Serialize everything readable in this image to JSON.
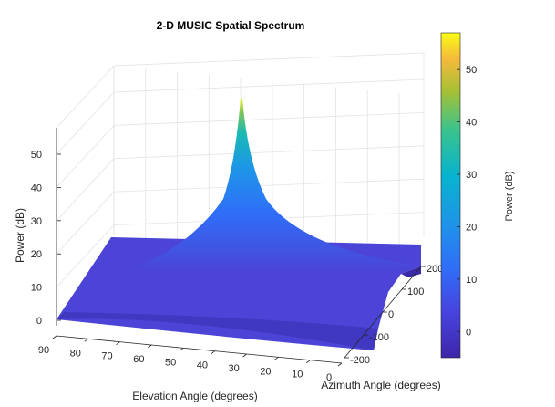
{
  "chart_data": {
    "type": "surface",
    "title": "2-D MUSIC Spatial Spectrum",
    "xlabel": "Elevation Angle (degrees)",
    "ylabel": "Azimuth Angle (degrees)",
    "zlabel": "Power (dB)",
    "colorbar_label": "Power (dB)",
    "x_ticks": [
      "90",
      "80",
      "70",
      "60",
      "50",
      "40",
      "30",
      "20",
      "10",
      "0"
    ],
    "x_tick_values": [
      90,
      80,
      70,
      60,
      50,
      40,
      30,
      20,
      10,
      0
    ],
    "y_ticks": [
      "200",
      "100",
      "0",
      "-100",
      "-200"
    ],
    "y_tick_values": [
      200,
      100,
      0,
      -100,
      -200
    ],
    "z_ticks": [
      "0",
      "10",
      "20",
      "30",
      "40",
      "50"
    ],
    "z_tick_values": [
      0,
      10,
      20,
      30,
      40,
      50
    ],
    "colorbar_ticks": [
      "50",
      "40",
      "30",
      "20",
      "10",
      "0"
    ],
    "colorbar_tick_values": [
      50,
      40,
      30,
      20,
      10,
      0
    ],
    "xlim": [
      0,
      90
    ],
    "ylim": [
      -200,
      200
    ],
    "zlim": [
      -3,
      57
    ],
    "clim": [
      -5,
      57
    ],
    "peak": {
      "elevation": 30,
      "azimuth": 10,
      "power_db": 56
    },
    "baseline_power_db": 0,
    "colormap": "parula",
    "grid": true
  }
}
